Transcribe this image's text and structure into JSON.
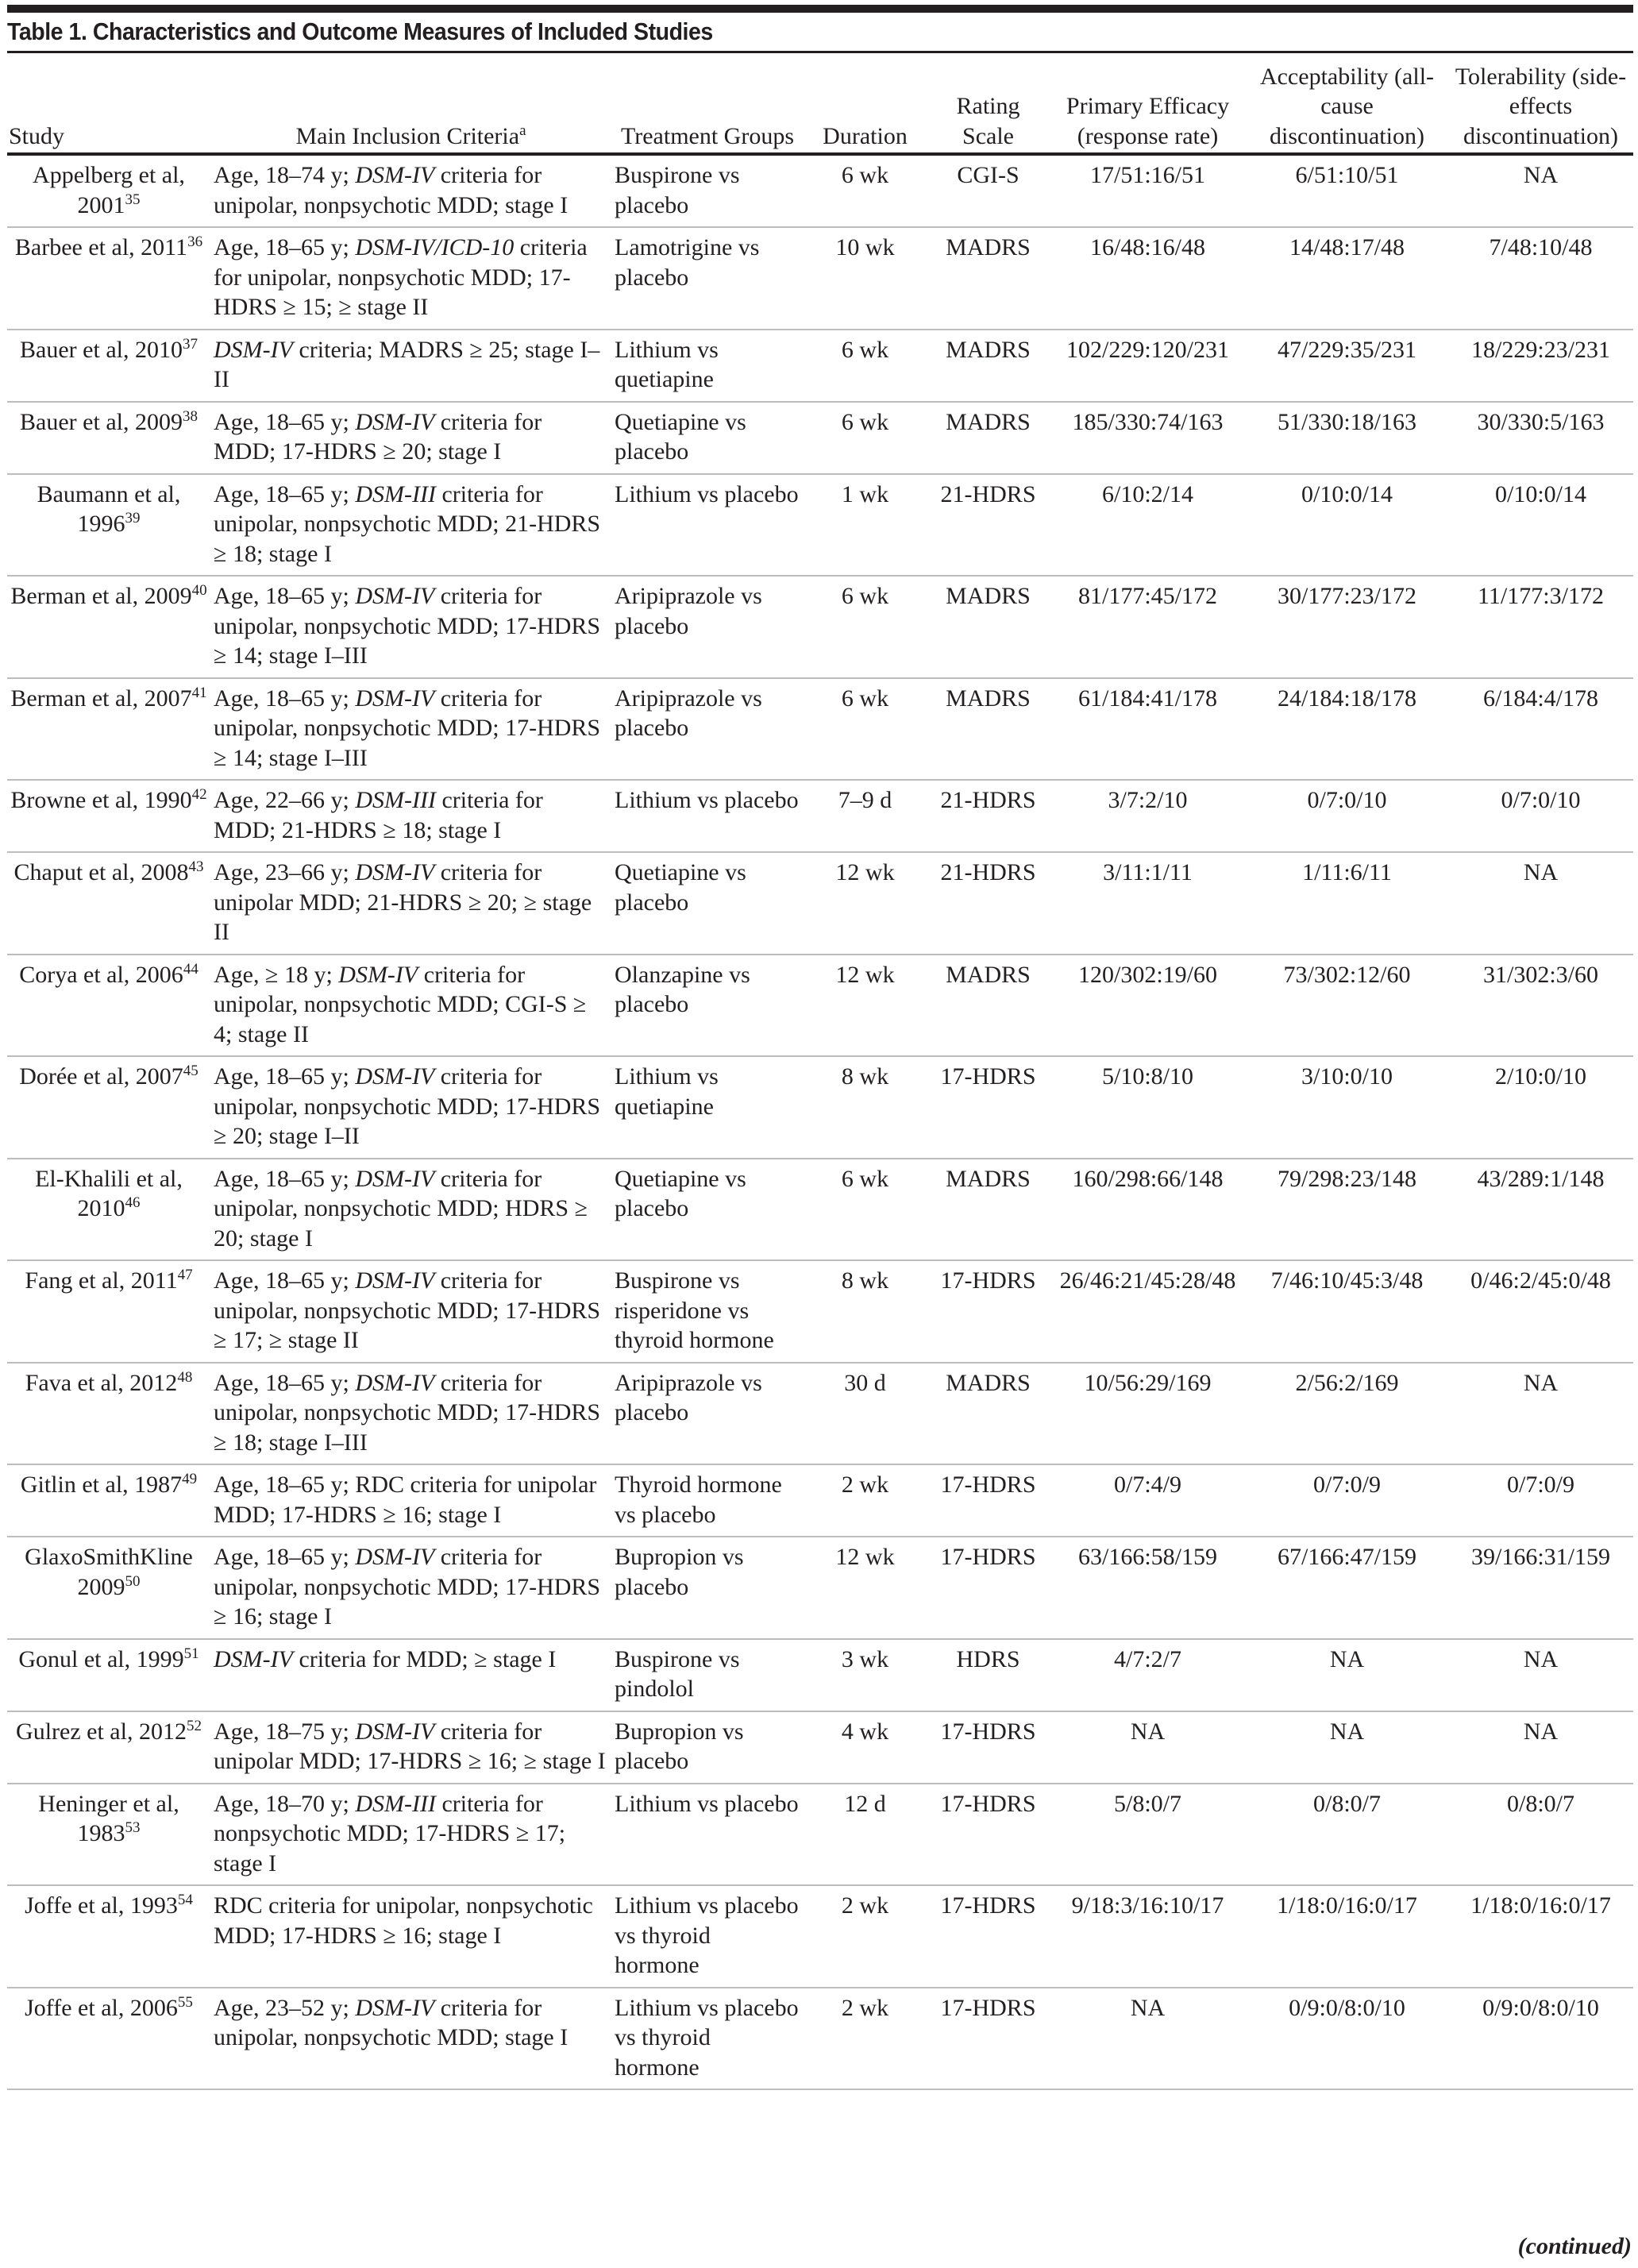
{
  "title": "Table 1. Characteristics and Outcome Measures of Included Studies",
  "headers": {
    "study": "Study",
    "criteria": "Main Inclusion Criteria",
    "criteria_sup": "a",
    "treatment": "Treatment Groups",
    "duration": "Duration",
    "rating": "Rating Scale",
    "efficacy": "Primary Efficacy (response rate)",
    "acceptability": "Acceptability (all-cause discontinuation)",
    "tolerability": "Tolerability (side-effects discontinuation)"
  },
  "rows": [
    {
      "study": "Appelberg et al, 2001",
      "ref": "35",
      "criteria": [
        [
          "Age, 18–74 y; ",
          0
        ],
        [
          "DSM-IV",
          1
        ],
        [
          " criteria for unipolar, nonpsychotic MDD; stage I",
          0
        ]
      ],
      "treatment": "Buspirone vs placebo",
      "duration": "6 wk",
      "rating": "CGI-S",
      "efficacy": "17/51:16/51",
      "acceptability": "6/51:10/51",
      "tolerability": "NA"
    },
    {
      "study": "Barbee et al, 2011",
      "ref": "36",
      "criteria": [
        [
          "Age, 18–65 y; ",
          0
        ],
        [
          "DSM-IV/ICD-10",
          1
        ],
        [
          " criteria for unipolar, nonpsychotic MDD; 17-HDRS ≥ 15; ≥ stage II",
          0
        ]
      ],
      "treatment": "Lamotrigine vs placebo",
      "duration": "10 wk",
      "rating": "MADRS",
      "efficacy": "16/48:16/48",
      "acceptability": "14/48:17/48",
      "tolerability": "7/48:10/48"
    },
    {
      "study": "Bauer et al, 2010",
      "ref": "37",
      "criteria": [
        [
          "DSM-IV",
          1
        ],
        [
          " criteria; MADRS ≥ 25; stage I–II",
          0
        ]
      ],
      "treatment": "Lithium vs quetiapine",
      "duration": "6 wk",
      "rating": "MADRS",
      "efficacy": "102/229:120/231",
      "acceptability": "47/229:35/231",
      "tolerability": "18/229:23/231"
    },
    {
      "study": "Bauer et al, 2009",
      "ref": "38",
      "criteria": [
        [
          "Age, 18–65 y; ",
          0
        ],
        [
          "DSM-IV",
          1
        ],
        [
          " criteria for MDD; 17-HDRS ≥ 20; stage I",
          0
        ]
      ],
      "treatment": "Quetiapine vs placebo",
      "duration": "6 wk",
      "rating": "MADRS",
      "efficacy": "185/330:74/163",
      "acceptability": "51/330:18/163",
      "tolerability": "30/330:5/163"
    },
    {
      "study": "Baumann et al, 1996",
      "ref": "39",
      "criteria": [
        [
          "Age, 18–65 y; ",
          0
        ],
        [
          "DSM-III",
          1
        ],
        [
          " criteria for unipolar, nonpsychotic MDD; 21-HDRS ≥ 18; stage I",
          0
        ]
      ],
      "treatment": "Lithium vs placebo",
      "duration": "1 wk",
      "rating": "21-HDRS",
      "efficacy": "6/10:2/14",
      "acceptability": "0/10:0/14",
      "tolerability": "0/10:0/14"
    },
    {
      "study": "Berman et al, 2009",
      "ref": "40",
      "criteria": [
        [
          "Age, 18–65 y; ",
          0
        ],
        [
          "DSM-IV",
          1
        ],
        [
          " criteria for unipolar, nonpsychotic MDD; 17-HDRS ≥ 14; stage I–III",
          0
        ]
      ],
      "treatment": "Aripiprazole vs placebo",
      "duration": "6 wk",
      "rating": "MADRS",
      "efficacy": "81/177:45/172",
      "acceptability": "30/177:23/172",
      "tolerability": "11/177:3/172"
    },
    {
      "study": "Berman et al, 2007",
      "ref": "41",
      "criteria": [
        [
          "Age, 18–65 y; ",
          0
        ],
        [
          "DSM-IV",
          1
        ],
        [
          " criteria for unipolar, nonpsychotic MDD; 17-HDRS ≥ 14; stage I–III",
          0
        ]
      ],
      "treatment": "Aripiprazole vs placebo",
      "duration": "6 wk",
      "rating": "MADRS",
      "efficacy": "61/184:41/178",
      "acceptability": "24/184:18/178",
      "tolerability": "6/184:4/178"
    },
    {
      "study": "Browne et al, 1990",
      "ref": "42",
      "criteria": [
        [
          "Age, 22–66 y; ",
          0
        ],
        [
          "DSM-III",
          1
        ],
        [
          " criteria for MDD; 21-HDRS ≥ 18; stage I",
          0
        ]
      ],
      "treatment": "Lithium vs placebo",
      "duration": "7–9 d",
      "rating": "21-HDRS",
      "efficacy": "3/7:2/10",
      "acceptability": "0/7:0/10",
      "tolerability": "0/7:0/10"
    },
    {
      "study": "Chaput et al, 2008",
      "ref": "43",
      "criteria": [
        [
          "Age, 23–66 y; ",
          0
        ],
        [
          "DSM-IV",
          1
        ],
        [
          " criteria for unipolar MDD; 21-HDRS ≥ 20; ≥ stage II",
          0
        ]
      ],
      "treatment": "Quetiapine vs placebo",
      "duration": "12 wk",
      "rating": "21-HDRS",
      "efficacy": "3/11:1/11",
      "acceptability": "1/11:6/11",
      "tolerability": "NA"
    },
    {
      "study": "Corya et al, 2006",
      "ref": "44",
      "criteria": [
        [
          "Age, ≥ 18 y; ",
          0
        ],
        [
          "DSM-IV",
          1
        ],
        [
          " criteria for unipolar, nonpsychotic MDD; CGI-S ≥ 4; stage II",
          0
        ]
      ],
      "treatment": "Olanzapine vs placebo",
      "duration": "12 wk",
      "rating": "MADRS",
      "efficacy": "120/302:19/60",
      "acceptability": "73/302:12/60",
      "tolerability": "31/302:3/60"
    },
    {
      "study": "Dorée et al, 2007",
      "ref": "45",
      "criteria": [
        [
          "Age, 18–65 y; ",
          0
        ],
        [
          "DSM-IV",
          1
        ],
        [
          " criteria for unipolar, nonpsychotic MDD; 17-HDRS ≥ 20; stage I–II",
          0
        ]
      ],
      "treatment": "Lithium vs quetiapine",
      "duration": "8 wk",
      "rating": "17-HDRS",
      "efficacy": "5/10:8/10",
      "acceptability": "3/10:0/10",
      "tolerability": "2/10:0/10"
    },
    {
      "study": "El-Khalili et al, 2010",
      "ref": "46",
      "criteria": [
        [
          "Age, 18–65 y; ",
          0
        ],
        [
          "DSM-IV",
          1
        ],
        [
          " criteria for unipolar, nonpsychotic MDD; HDRS ≥ 20; stage I",
          0
        ]
      ],
      "treatment": "Quetiapine vs placebo",
      "duration": "6 wk",
      "rating": "MADRS",
      "efficacy": "160/298:66/148",
      "acceptability": "79/298:23/148",
      "tolerability": "43/289:1/148"
    },
    {
      "study": "Fang et al, 2011",
      "ref": "47",
      "criteria": [
        [
          "Age, 18–65 y; ",
          0
        ],
        [
          "DSM-IV",
          1
        ],
        [
          " criteria for unipolar, nonpsychotic MDD; 17-HDRS ≥ 17; ≥ stage II",
          0
        ]
      ],
      "treatment": "Buspirone vs risperidone vs thyroid hormone",
      "duration": "8 wk",
      "rating": "17-HDRS",
      "efficacy": "26/46:21/45:28/48",
      "acceptability": "7/46:10/45:3/48",
      "tolerability": "0/46:2/45:0/48"
    },
    {
      "study": "Fava et al, 2012",
      "ref": "48",
      "criteria": [
        [
          "Age, 18–65 y; ",
          0
        ],
        [
          "DSM-IV",
          1
        ],
        [
          " criteria for unipolar, nonpsychotic MDD; 17-HDRS ≥ 18; stage I–III",
          0
        ]
      ],
      "treatment": "Aripiprazole vs placebo",
      "duration": "30 d",
      "rating": "MADRS",
      "efficacy": "10/56:29/169",
      "acceptability": "2/56:2/169",
      "tolerability": "NA"
    },
    {
      "study": "Gitlin et al, 1987",
      "ref": "49",
      "criteria": [
        [
          "Age, 18–65 y; RDC criteria for unipolar MDD; 17-HDRS ≥ 16; stage I",
          0
        ]
      ],
      "treatment": "Thyroid hormone vs placebo",
      "duration": "2 wk",
      "rating": "17-HDRS",
      "efficacy": "0/7:4/9",
      "acceptability": "0/7:0/9",
      "tolerability": "0/7:0/9"
    },
    {
      "study": "GlaxoSmithKline 2009",
      "ref": "50",
      "criteria": [
        [
          "Age, 18–65 y; ",
          0
        ],
        [
          "DSM-IV",
          1
        ],
        [
          " criteria for unipolar, nonpsychotic MDD; 17-HDRS ≥ 16; stage I",
          0
        ]
      ],
      "treatment": "Bupropion vs placebo",
      "duration": "12 wk",
      "rating": "17-HDRS",
      "efficacy": "63/166:58/159",
      "acceptability": "67/166:47/159",
      "tolerability": "39/166:31/159"
    },
    {
      "study": "Gonul et al, 1999",
      "ref": "51",
      "criteria": [
        [
          "DSM-IV",
          1
        ],
        [
          " criteria for MDD; ≥ stage I",
          0
        ]
      ],
      "treatment": "Buspirone vs pindolol",
      "duration": "3 wk",
      "rating": "HDRS",
      "efficacy": "4/7:2/7",
      "acceptability": "NA",
      "tolerability": "NA"
    },
    {
      "study": "Gulrez et al, 2012",
      "ref": "52",
      "criteria": [
        [
          "Age, 18–75 y; ",
          0
        ],
        [
          "DSM-IV",
          1
        ],
        [
          " criteria for unipolar MDD; 17-HDRS ≥ 16; ≥ stage I",
          0
        ]
      ],
      "treatment": "Bupropion vs placebo",
      "duration": "4 wk",
      "rating": "17-HDRS",
      "efficacy": "NA",
      "acceptability": "NA",
      "tolerability": "NA"
    },
    {
      "study": "Heninger et al, 1983",
      "ref": "53",
      "criteria": [
        [
          "Age, 18–70 y; ",
          0
        ],
        [
          "DSM-III",
          1
        ],
        [
          " criteria for nonpsychotic MDD; 17-HDRS ≥ 17; stage I",
          0
        ]
      ],
      "treatment": "Lithium vs placebo",
      "duration": "12 d",
      "rating": "17-HDRS",
      "efficacy": "5/8:0/7",
      "acceptability": "0/8:0/7",
      "tolerability": "0/8:0/7"
    },
    {
      "study": "Joffe et al, 1993",
      "ref": "54",
      "criteria": [
        [
          "RDC criteria for unipolar, nonpsychotic MDD; 17-HDRS ≥ 16; stage I",
          0
        ]
      ],
      "treatment": "Lithium vs placebo vs thyroid hormone",
      "duration": "2 wk",
      "rating": "17-HDRS",
      "efficacy": "9/18:3/16:10/17",
      "acceptability": "1/18:0/16:0/17",
      "tolerability": "1/18:0/16:0/17"
    },
    {
      "study": "Joffe et al, 2006",
      "ref": "55",
      "criteria": [
        [
          "Age, 23–52 y; ",
          0
        ],
        [
          "DSM-IV",
          1
        ],
        [
          " criteria for unipolar, nonpsychotic MDD; stage I",
          0
        ]
      ],
      "treatment": "Lithium vs placebo vs thyroid hormone",
      "duration": "2 wk",
      "rating": "17-HDRS",
      "efficacy": "NA",
      "acceptability": "0/9:0/8:0/10",
      "tolerability": "0/9:0/8:0/10"
    }
  ],
  "footer": "(continued)"
}
